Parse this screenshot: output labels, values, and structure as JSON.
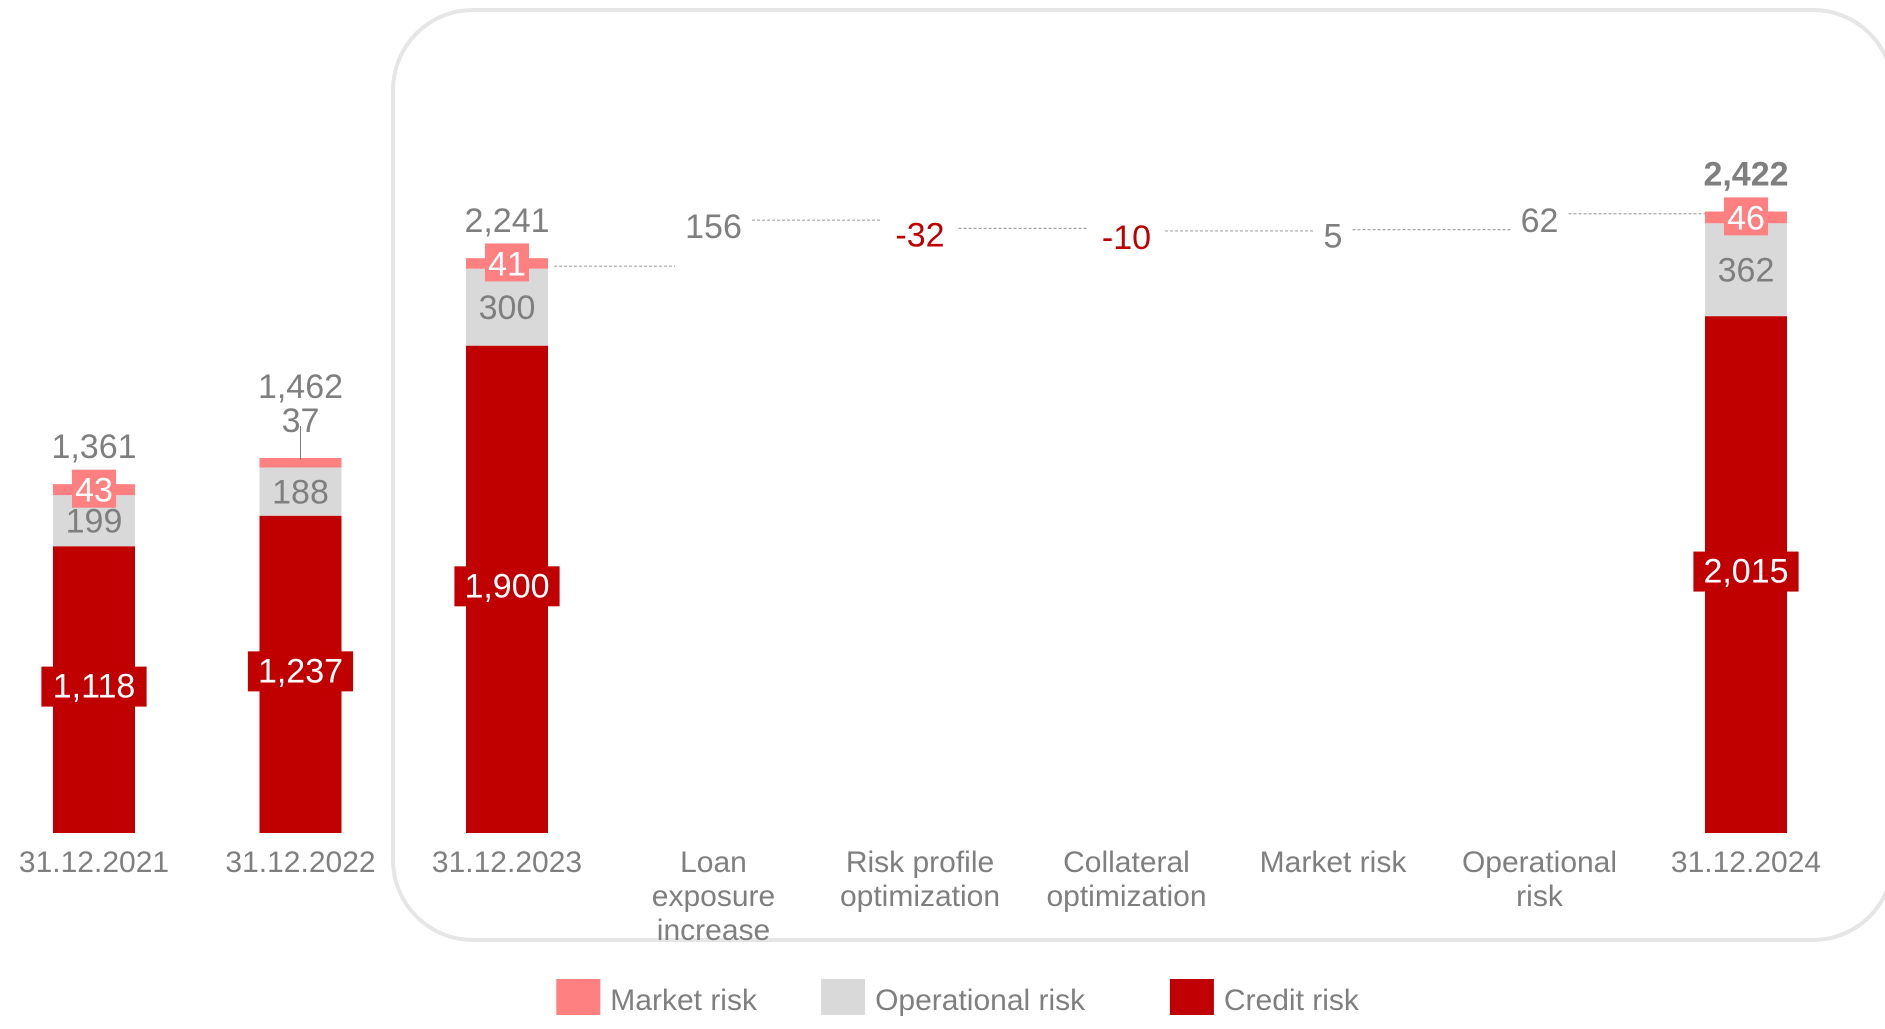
{
  "chart_data": {
    "type": "bar",
    "subtype": "stacked-bar-with-waterfall-bridge",
    "categories": [
      "31.12.2021",
      "31.12.2022",
      "31.12.2023",
      "Loan exposure increase",
      "Risk profile optimization",
      "Collateral optimization",
      "Market risk",
      "Operational risk",
      "31.12.2024"
    ],
    "category_label_lines": [
      [
        "31.12.2021"
      ],
      [
        "31.12.2022"
      ],
      [
        "31.12.2023"
      ],
      [
        "Loan",
        "exposure",
        "increase"
      ],
      [
        "Risk profile",
        "optimization"
      ],
      [
        "Collateral",
        "optimization"
      ],
      [
        "Market risk"
      ],
      [
        "Operational",
        "risk"
      ],
      [
        "31.12.2024"
      ]
    ],
    "series": [
      {
        "name": "Credit risk",
        "color": "#c00000",
        "values": [
          1118,
          1237,
          1900,
          null,
          null,
          null,
          null,
          null,
          2015
        ],
        "labels": [
          "1,118",
          "1,237",
          "1,900",
          "",
          "",
          "",
          "",
          "",
          "2,015"
        ]
      },
      {
        "name": "Operational risk",
        "color": "#d9d9d9",
        "values": [
          199,
          188,
          300,
          null,
          null,
          null,
          null,
          null,
          362
        ],
        "labels": [
          "199",
          "188",
          "300",
          "",
          "",
          "",
          "",
          "",
          "362"
        ]
      },
      {
        "name": "Market risk",
        "color": "#ff8080",
        "values": [
          43,
          37,
          41,
          null,
          null,
          null,
          null,
          null,
          46
        ],
        "labels": [
          "43",
          "37",
          "41",
          "",
          "",
          "",
          "",
          "",
          "46"
        ]
      }
    ],
    "totals": [
      1361,
      1462,
      2241,
      null,
      null,
      null,
      null,
      null,
      2422
    ],
    "total_labels": [
      "1,361",
      "1,462",
      "2,241",
      "",
      "",
      "",
      "",
      "",
      "2,422"
    ],
    "bridge_changes": [
      null,
      null,
      null,
      156,
      -32,
      -10,
      5,
      62,
      null
    ],
    "bridge_labels": [
      "",
      "",
      "",
      "156",
      "-32",
      "-10",
      "5",
      "62",
      ""
    ],
    "colors": {
      "positive_change": "#7f7f7f",
      "negative_change": "#c00000",
      "total_text": "#7f7f7f",
      "frame": "#e6e6e6"
    },
    "legend": {
      "order": [
        "Market risk",
        "Operational risk",
        "Credit risk"
      ],
      "placement": "bottom-center"
    },
    "ylim": [
      0,
      2550
    ],
    "grid": false,
    "title": "",
    "xlabel": "",
    "ylabel": ""
  }
}
